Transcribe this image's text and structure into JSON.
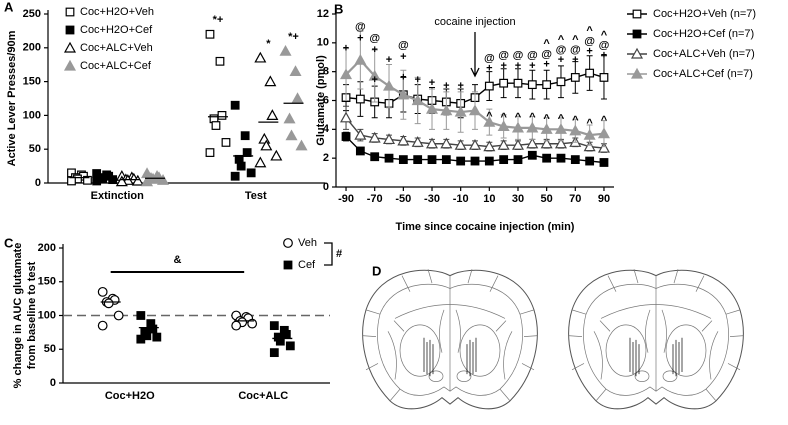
{
  "panel_labels": [
    "A",
    "B",
    "C",
    "D"
  ],
  "chart_data": [
    {
      "type": "strip",
      "ylabel": "Active Lever Presses/90m",
      "categories": [
        "Extinction",
        "Test"
      ],
      "ylim": [
        0,
        250
      ],
      "yticks": [
        0,
        50,
        100,
        150,
        200,
        250
      ],
      "series": [
        {
          "name": "Coc+H2O+Veh",
          "marker": "square-open",
          "color": "#000000",
          "values": [
            [
              15,
              12,
              10,
              8,
              6,
              4,
              3
            ],
            [
              220,
              180,
              100,
              95,
              85,
              60,
              45
            ]
          ],
          "means": [
            8,
            98
          ],
          "sig": [
            null,
            "*+"
          ]
        },
        {
          "name": "Coc+H2O+Cef",
          "marker": "square",
          "color": "#000000",
          "values": [
            [
              14,
              12,
              10,
              8,
              6,
              5,
              3
            ],
            [
              115,
              70,
              45,
              35,
              25,
              15,
              10
            ]
          ],
          "means": [
            8,
            40
          ],
          "sig": [
            null,
            null
          ]
        },
        {
          "name": "Coc+ALC+Veh",
          "marker": "triangle-open",
          "color": "#000000",
          "values": [
            [
              10,
              8,
              6,
              5,
              4,
              3,
              2
            ],
            [
              185,
              150,
              100,
              65,
              55,
              40,
              30
            ]
          ],
          "means": [
            5,
            90
          ],
          "sig": [
            null,
            "*"
          ]
        },
        {
          "name": "Coc+ALC+Cef",
          "marker": "triangle",
          "color": "#999999",
          "values": [
            [
              14,
              10,
              8,
              7,
              6,
              4,
              2
            ],
            [
              195,
              165,
              125,
              95,
              70,
              55
            ]
          ],
          "means": [
            7,
            118
          ],
          "sig": [
            null,
            "*+"
          ]
        }
      ]
    },
    {
      "type": "line",
      "xlabel": "Time since cocaine injection (min)",
      "ylabel": "Glutamate (pmol)",
      "x": [
        -90,
        -80,
        -70,
        -60,
        -50,
        -40,
        -30,
        -20,
        -10,
        0,
        10,
        20,
        30,
        40,
        50,
        60,
        70,
        80,
        90
      ],
      "xlim": [
        -97,
        97
      ],
      "xticks": [
        -90,
        -70,
        -50,
        -30,
        -10,
        10,
        30,
        50,
        70,
        90
      ],
      "ylim": [
        0,
        12
      ],
      "yticks": [
        0,
        2,
        4,
        6,
        8,
        10,
        12
      ],
      "arrow": {
        "x": 0,
        "label": "cocaine injection"
      },
      "series": [
        {
          "name": "Coc+H2O+Veh (n=7)",
          "marker": "square-open",
          "color": "#000000",
          "values": [
            6.2,
            6.1,
            5.9,
            5.8,
            6.4,
            6.1,
            6.0,
            5.9,
            5.8,
            6.2,
            7.0,
            7.2,
            7.2,
            7.1,
            7.1,
            7.3,
            7.6,
            7.9,
            7.6
          ],
          "errors": [
            0.9,
            1.2,
            1.1,
            1.0,
            1.2,
            1.0,
            0.9,
            0.9,
            1.0,
            0.9,
            1.0,
            1.0,
            1.0,
            1.0,
            1.0,
            1.1,
            1.1,
            1.2,
            1.5
          ]
        },
        {
          "name": "Coc+H2O+Cef (n=7)",
          "marker": "square",
          "color": "#000000",
          "values": [
            3.5,
            2.5,
            2.1,
            2.0,
            1.9,
            1.9,
            1.9,
            1.9,
            1.8,
            1.8,
            1.8,
            1.9,
            1.9,
            2.2,
            2.0,
            2.0,
            1.9,
            1.8,
            1.7
          ],
          "errors": [
            0.3,
            0.2,
            0.1,
            0.1,
            0.1,
            0.1,
            0.1,
            0.1,
            0.1,
            0.1,
            0.1,
            0.1,
            0.1,
            0.2,
            0.1,
            0.1,
            0.1,
            0.1,
            0.1
          ]
        },
        {
          "name": "Coc+ALC+Veh (n=7)",
          "marker": "triangle-open",
          "color": "#444444",
          "values": [
            4.8,
            3.6,
            3.4,
            3.3,
            3.2,
            3.1,
            3.0,
            3.0,
            2.9,
            2.9,
            2.8,
            2.9,
            2.9,
            3.0,
            3.0,
            3.0,
            3.1,
            2.8,
            2.7
          ],
          "errors": [
            0.8,
            0.4,
            0.3,
            0.3,
            0.3,
            0.3,
            0.3,
            0.3,
            0.3,
            0.3,
            0.3,
            0.3,
            0.3,
            0.3,
            0.3,
            0.3,
            0.3,
            0.3,
            0.3
          ]
        },
        {
          "name": "Coc+ALC+Cef (n=7)",
          "marker": "triangle",
          "color": "#999999",
          "values": [
            7.8,
            8.8,
            7.7,
            7.0,
            6.4,
            6.0,
            5.4,
            5.3,
            5.2,
            5.3,
            4.5,
            4.2,
            4.1,
            4.1,
            4.0,
            4.0,
            3.9,
            3.6,
            3.7
          ],
          "errors": [
            1.8,
            2.0,
            1.8,
            1.5,
            1.7,
            1.6,
            1.4,
            1.3,
            1.4,
            1.3,
            0.9,
            0.8,
            0.8,
            0.8,
            0.8,
            0.8,
            0.8,
            0.7,
            0.9
          ]
        }
      ],
      "annotations": [
        {
          "x": -90,
          "y": 9.6,
          "text": "+"
        },
        {
          "x": -80,
          "y": 11.1,
          "text": "@"
        },
        {
          "x": -80,
          "y": 10.3,
          "text": "+"
        },
        {
          "x": -70,
          "y": 10.3,
          "text": "@"
        },
        {
          "x": -70,
          "y": 9.5,
          "text": "+"
        },
        {
          "x": -60,
          "y": 8.8,
          "text": "+"
        },
        {
          "x": -50,
          "y": 9.8,
          "text": "@"
        },
        {
          "x": -50,
          "y": 9.0,
          "text": "+"
        },
        {
          "x": -70,
          "y": 7.4,
          "text": "+"
        },
        {
          "x": -50,
          "y": 7.6,
          "text": "+"
        },
        {
          "x": -40,
          "y": 7.4,
          "text": "+"
        },
        {
          "x": -30,
          "y": 7.2,
          "text": "+"
        },
        {
          "x": -20,
          "y": 7.0,
          "text": "+"
        },
        {
          "x": -10,
          "y": 7.0,
          "text": "+"
        },
        {
          "x": 10,
          "y": 8.9,
          "text": "@"
        },
        {
          "x": 10,
          "y": 8.2,
          "text": "+"
        },
        {
          "x": 20,
          "y": 9.1,
          "text": "@"
        },
        {
          "x": 20,
          "y": 8.4,
          "text": "+"
        },
        {
          "x": 30,
          "y": 9.1,
          "text": "@"
        },
        {
          "x": 30,
          "y": 8.4,
          "text": "+"
        },
        {
          "x": 40,
          "y": 9.1,
          "text": "@"
        },
        {
          "x": 40,
          "y": 8.4,
          "text": "+"
        },
        {
          "x": 50,
          "y": 9.9,
          "text": "^"
        },
        {
          "x": 50,
          "y": 9.2,
          "text": "@"
        },
        {
          "x": 50,
          "y": 8.5,
          "text": "+"
        },
        {
          "x": 60,
          "y": 10.2,
          "text": "^"
        },
        {
          "x": 60,
          "y": 9.5,
          "text": "@"
        },
        {
          "x": 60,
          "y": 8.8,
          "text": "+"
        },
        {
          "x": 70,
          "y": 10.2,
          "text": "^"
        },
        {
          "x": 70,
          "y": 9.5,
          "text": "@"
        },
        {
          "x": 70,
          "y": 8.8,
          "text": "+"
        },
        {
          "x": 80,
          "y": 10.8,
          "text": "^"
        },
        {
          "x": 80,
          "y": 10.1,
          "text": "@"
        },
        {
          "x": 80,
          "y": 9.4,
          "text": "+"
        },
        {
          "x": 90,
          "y": 10.5,
          "text": "^"
        },
        {
          "x": 90,
          "y": 9.8,
          "text": "@"
        },
        {
          "x": 90,
          "y": 9.1,
          "text": "+"
        },
        {
          "x": 10,
          "y": 4.9,
          "text": "^"
        },
        {
          "x": 20,
          "y": 4.8,
          "text": "^"
        },
        {
          "x": 30,
          "y": 4.8,
          "text": "^"
        },
        {
          "x": 40,
          "y": 4.8,
          "text": "^"
        },
        {
          "x": 50,
          "y": 4.7,
          "text": "^"
        },
        {
          "x": 60,
          "y": 4.7,
          "text": "^"
        },
        {
          "x": 70,
          "y": 4.6,
          "text": "^"
        },
        {
          "x": 80,
          "y": 4.4,
          "text": "^"
        },
        {
          "x": 90,
          "y": 4.6,
          "text": "^"
        }
      ]
    },
    {
      "type": "strip",
      "ylabel": [
        "% change in  AUC glutamate",
        "from baseline to test"
      ],
      "categories": [
        "Coc+H2O",
        "Coc+ALC"
      ],
      "ylim": [
        0,
        200
      ],
      "yticks": [
        0,
        50,
        100,
        150,
        200
      ],
      "reference": 100,
      "comparison_label": "&",
      "group_label": "#",
      "series": [
        {
          "name": "Veh",
          "marker": "circle-open",
          "color": "#000000",
          "values": [
            [
              135,
              125,
              123,
              120,
              118,
              100,
              85
            ],
            [
              100,
              98,
              96,
              92,
              90,
              88,
              85
            ]
          ],
          "means": [
            120,
            92
          ]
        },
        {
          "name": "Cef",
          "marker": "square",
          "color": "#000000",
          "values": [
            [
              100,
              88,
              80,
              75,
              70,
              68,
              65
            ],
            [
              85,
              78,
              72,
              68,
              62,
              55,
              45
            ]
          ],
          "means": [
            82,
            66
          ]
        }
      ]
    }
  ]
}
